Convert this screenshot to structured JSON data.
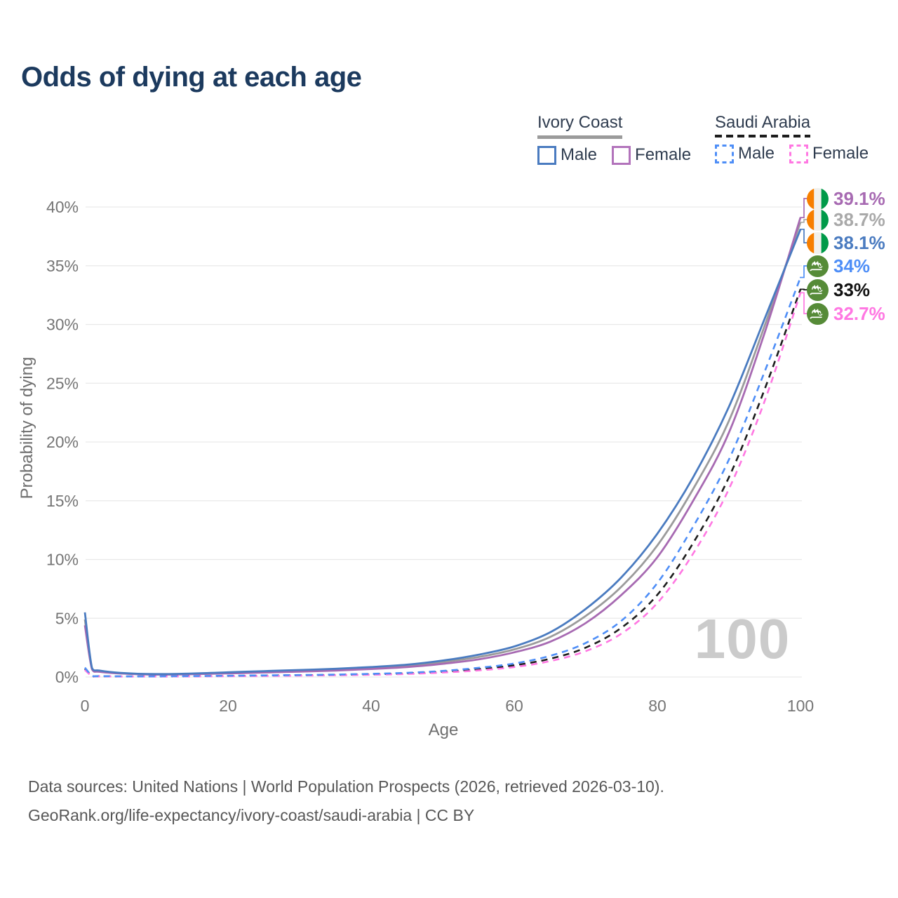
{
  "title": "Odds of dying at each age",
  "watermark": "100",
  "legend": {
    "groups": [
      {
        "name": "Ivory Coast",
        "line_style": "solid",
        "line_color": "#9b9b9b",
        "items": [
          {
            "label": "Male",
            "swatch_color": "#4a7bc0",
            "swatch_style": "solid"
          },
          {
            "label": "Female",
            "swatch_color": "#b273bb",
            "swatch_style": "solid"
          }
        ]
      },
      {
        "name": "Saudi Arabia",
        "line_style": "dashed",
        "line_color": "#1c1c1c",
        "items": [
          {
            "label": "Male",
            "swatch_color": "#4e8ef7",
            "swatch_style": "dashed"
          },
          {
            "label": "Female",
            "swatch_color": "#ff77e2",
            "swatch_style": "dashed"
          }
        ]
      }
    ]
  },
  "axes": {
    "x_label": "Age",
    "y_label": "Probability of dying",
    "x_ticks": [
      0,
      20,
      40,
      60,
      80,
      100
    ],
    "y_ticks": [
      0,
      5,
      10,
      15,
      20,
      25,
      30,
      35,
      40
    ],
    "y_tick_suffix": "%"
  },
  "chart_data": {
    "type": "line",
    "title": "Odds of dying at each age",
    "xlabel": "Age",
    "ylabel": "Probability of dying",
    "xlim": [
      0,
      100
    ],
    "ylim": [
      0,
      40
    ],
    "grid": "horizontal gridlines every 5%",
    "legend_position": "top-right",
    "x": [
      0,
      1,
      2,
      5,
      10,
      15,
      20,
      25,
      30,
      35,
      40,
      45,
      50,
      55,
      60,
      65,
      70,
      75,
      80,
      85,
      90,
      95,
      100
    ],
    "series": [
      {
        "name": "Ivory Coast Male",
        "color": "#4a7bc0",
        "dashed": false,
        "values": [
          5.5,
          0.75,
          0.55,
          0.35,
          0.25,
          0.3,
          0.4,
          0.5,
          0.6,
          0.7,
          0.85,
          1.05,
          1.4,
          1.9,
          2.6,
          3.8,
          5.8,
          8.5,
          12.2,
          17.0,
          23.0,
          30.5,
          38.1
        ],
        "end_value_label": "38.1%"
      },
      {
        "name": "Ivory Coast Both sexes",
        "color": "#9b9b9b",
        "dashed": false,
        "values": [
          4.9,
          0.7,
          0.5,
          0.32,
          0.22,
          0.27,
          0.36,
          0.44,
          0.53,
          0.63,
          0.77,
          0.95,
          1.27,
          1.7,
          2.35,
          3.4,
          5.2,
          7.7,
          11.2,
          16.0,
          21.8,
          29.9,
          38.7
        ],
        "end_value_label": "38.7%"
      },
      {
        "name": "Ivory Coast Female",
        "color": "#a76ab2",
        "dashed": false,
        "values": [
          4.4,
          0.65,
          0.45,
          0.3,
          0.2,
          0.24,
          0.31,
          0.38,
          0.46,
          0.55,
          0.68,
          0.85,
          1.12,
          1.5,
          2.1,
          3.0,
          4.6,
          7.0,
          10.2,
          15.0,
          20.8,
          29.3,
          39.1
        ],
        "end_value_label": "39.1%"
      },
      {
        "name": "Saudi Arabia Male",
        "color": "#4e8ef7",
        "dashed": true,
        "values": [
          0.8,
          0.12,
          0.08,
          0.06,
          0.06,
          0.08,
          0.11,
          0.14,
          0.17,
          0.21,
          0.27,
          0.36,
          0.52,
          0.78,
          1.15,
          1.8,
          2.9,
          4.8,
          8.0,
          12.8,
          18.5,
          26.0,
          34.0
        ],
        "end_value_label": "34%"
      },
      {
        "name": "Saudi Arabia Both sexes",
        "color": "#1c1c1c",
        "dashed": true,
        "values": [
          0.7,
          0.1,
          0.07,
          0.05,
          0.05,
          0.07,
          0.09,
          0.12,
          0.15,
          0.18,
          0.23,
          0.31,
          0.45,
          0.67,
          1.0,
          1.55,
          2.5,
          4.2,
          7.0,
          11.4,
          17.0,
          24.5,
          33.0
        ],
        "end_value_label": "33%"
      },
      {
        "name": "Saudi Arabia Female",
        "color": "#ff77e2",
        "dashed": true,
        "values": [
          0.6,
          0.09,
          0.06,
          0.04,
          0.04,
          0.05,
          0.07,
          0.09,
          0.12,
          0.15,
          0.19,
          0.26,
          0.38,
          0.56,
          0.85,
          1.35,
          2.2,
          3.7,
          6.3,
          10.5,
          16.0,
          23.5,
          32.7
        ],
        "end_value_label": "32.7%"
      }
    ]
  },
  "end_labels": [
    {
      "text": "39.1%",
      "flag": "ivory-coast",
      "color": "#a76ab2",
      "series": "Ivory Coast Female"
    },
    {
      "text": "38.7%",
      "flag": "ivory-coast",
      "color": "#a9a9a9",
      "series": "Ivory Coast Both sexes"
    },
    {
      "text": "38.1%",
      "flag": "ivory-coast",
      "color": "#4a7bc0",
      "series": "Ivory Coast Male"
    },
    {
      "text": "34%",
      "flag": "saudi-arabia",
      "color": "#4e8ef7",
      "series": "Saudi Arabia Male"
    },
    {
      "text": "33%",
      "flag": "saudi-arabia",
      "color": "#111111",
      "series": "Saudi Arabia Both sexes"
    },
    {
      "text": "32.7%",
      "flag": "saudi-arabia",
      "color": "#ff77e2",
      "series": "Saudi Arabia Female"
    }
  ],
  "footer": {
    "line1": "Data sources: United Nations | World Population Prospects (2026, retrieved 2026-03-10).",
    "line2": "GeoRank.org/life-expectancy/ivory-coast/saudi-arabia | CC BY"
  }
}
